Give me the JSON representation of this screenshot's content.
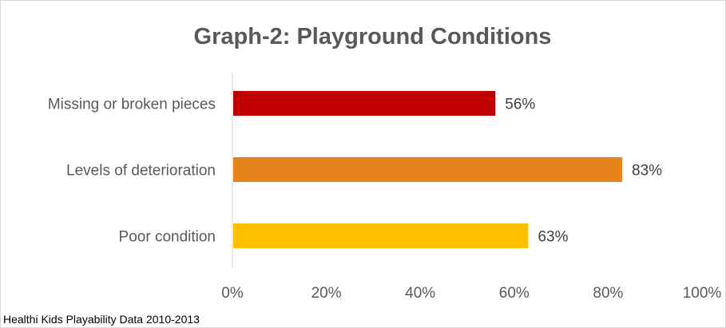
{
  "chart_data": {
    "type": "bar",
    "orientation": "horizontal",
    "title": "Graph-2: Playground Conditions",
    "categories": [
      "Missing or broken pieces",
      "Levels of deterioration",
      "Poor condition"
    ],
    "values": [
      56,
      83,
      63
    ],
    "value_labels": [
      "56%",
      "83%",
      "63%"
    ],
    "colors": [
      "#c00000",
      "#e6831a",
      "#ffc000"
    ],
    "x_ticks": [
      "0%",
      "20%",
      "40%",
      "60%",
      "80%",
      "100%"
    ],
    "xlim": [
      0,
      100
    ],
    "xlabel": "",
    "ylabel": "",
    "grid": false,
    "legend": "none"
  },
  "source_note": "Healthi Kids Playability Data 2010-2013"
}
